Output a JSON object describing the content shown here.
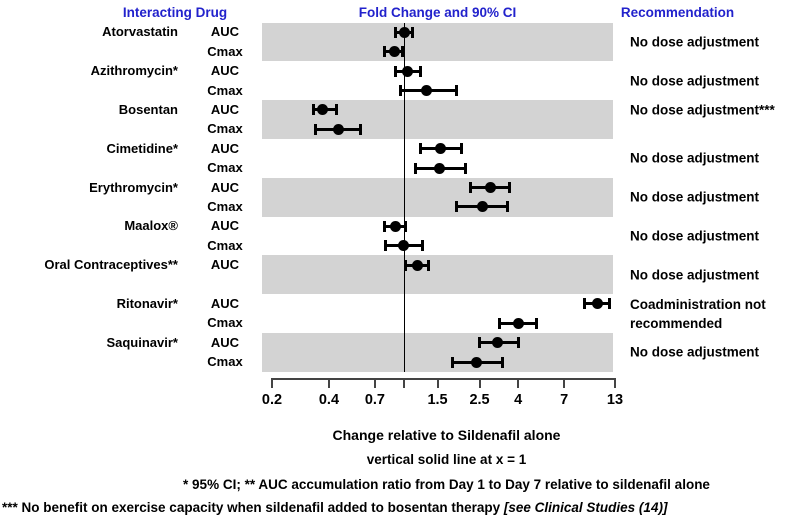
{
  "figure": {
    "headers": {
      "interacting_drug": "Interacting Drug",
      "fold_change": "Fold Change and 90% CI",
      "recommendation": "Recommendation"
    },
    "axis_label": "Change relative to Sildenafil alone",
    "axis_note": "vertical solid line at x = 1",
    "footnote_ci": "* 95% CI;  ** AUC accumulation ratio from Day 1 to Day 7 relative to sildenafil alone",
    "footnote_bosentan": "*** No benefit on exercise capacity when sildenafil added to bosentan therapy ",
    "footnote_bosentan_ref": "[see Clinical Studies (14)]"
  },
  "colors": {
    "header_blue": "#2222cc",
    "band_gray": "#d3d3d3",
    "marker_black": "#000000",
    "axis_gray": "#444444"
  },
  "chart_data": {
    "type": "scatter",
    "subtype": "forest-plot",
    "title": "Fold Change and 90% CI",
    "xlabel": "Change relative to Sildenafil alone",
    "x_scale": "log",
    "xlim": [
      0.2,
      13
    ],
    "x_ticks": [
      0.2,
      0.4,
      0.7,
      1,
      1.5,
      2.5,
      4,
      7,
      13
    ],
    "x_tick_labels": [
      "0.2",
      "0.4",
      "0.7",
      "",
      "1.5",
      "2.5",
      "4",
      "7",
      "13"
    ],
    "reference_line_x": 1,
    "ci_level": "90% (unless noted * = 95%)",
    "groups": [
      {
        "drug": "Atorvastatin",
        "slug": "atorvastatin",
        "shaded": true,
        "recommendation": "No dose adjustment",
        "rows": [
          {
            "param": "AUC",
            "estimate": 1.0,
            "ci_low": 0.9,
            "ci_high": 1.11
          },
          {
            "param": "Cmax",
            "estimate": 0.89,
            "ci_low": 0.79,
            "ci_high": 0.98
          }
        ]
      },
      {
        "drug": "Azithromycin*",
        "slug": "azithromycin",
        "shaded": false,
        "recommendation": "No dose adjustment",
        "rows": [
          {
            "param": "AUC",
            "estimate": 1.04,
            "ci_low": 0.9,
            "ci_high": 1.22
          },
          {
            "param": "Cmax",
            "estimate": 1.31,
            "ci_low": 0.95,
            "ci_high": 1.9
          }
        ]
      },
      {
        "drug": "Bosentan",
        "slug": "bosentan",
        "shaded": true,
        "rec_align": "first",
        "recommendation": "No dose adjustment***",
        "rows": [
          {
            "param": "AUC",
            "estimate": 0.37,
            "ci_low": 0.33,
            "ci_high": 0.44
          },
          {
            "param": "Cmax",
            "estimate": 0.45,
            "ci_low": 0.34,
            "ci_high": 0.59
          }
        ]
      },
      {
        "drug": "Cimetidine*",
        "slug": "cimetidine",
        "shaded": false,
        "recommendation": "No dose adjustment",
        "rows": [
          {
            "param": "AUC",
            "estimate": 1.56,
            "ci_low": 1.22,
            "ci_high": 2.0
          },
          {
            "param": "Cmax",
            "estimate": 1.54,
            "ci_low": 1.15,
            "ci_high": 2.1
          }
        ]
      },
      {
        "drug": "Erythromycin*",
        "slug": "erythromycin",
        "shaded": true,
        "recommendation": "No dose adjustment",
        "rows": [
          {
            "param": "AUC",
            "estimate": 2.84,
            "ci_low": 2.25,
            "ci_high": 3.6
          },
          {
            "param": "Cmax",
            "estimate": 2.6,
            "ci_low": 1.9,
            "ci_high": 3.5
          }
        ]
      },
      {
        "drug": "Maalox®",
        "slug": "maalox",
        "shaded": false,
        "recommendation": "No dose adjustment",
        "rows": [
          {
            "param": "AUC",
            "estimate": 0.9,
            "ci_low": 0.79,
            "ci_high": 1.02
          },
          {
            "param": "Cmax",
            "estimate": 0.99,
            "ci_low": 0.8,
            "ci_high": 1.25
          }
        ]
      },
      {
        "drug": "Oral Contraceptives**",
        "slug": "oral-contraceptives",
        "shaded": true,
        "slots": 2,
        "recommendation": "No dose adjustment",
        "rows": [
          {
            "param": "AUC",
            "estimate": 1.17,
            "ci_low": 1.02,
            "ci_high": 1.34
          }
        ]
      },
      {
        "drug": "Ritonavir*",
        "slug": "ritonavir",
        "shaded": false,
        "recommendation": "Coadministration not\nrecommended",
        "rows": [
          {
            "param": "AUC",
            "estimate": 10.5,
            "ci_low": 9.0,
            "ci_high": 12.2
          },
          {
            "param": "Cmax",
            "estimate": 4.0,
            "ci_low": 3.2,
            "ci_high": 5.0
          }
        ]
      },
      {
        "drug": "Saquinavir*",
        "slug": "saquinavir",
        "shaded": true,
        "recommendation": "No dose adjustment",
        "rows": [
          {
            "param": "AUC",
            "estimate": 3.1,
            "ci_low": 2.5,
            "ci_high": 4.0
          },
          {
            "param": "Cmax",
            "estimate": 2.4,
            "ci_low": 1.8,
            "ci_high": 3.3
          }
        ]
      }
    ]
  }
}
